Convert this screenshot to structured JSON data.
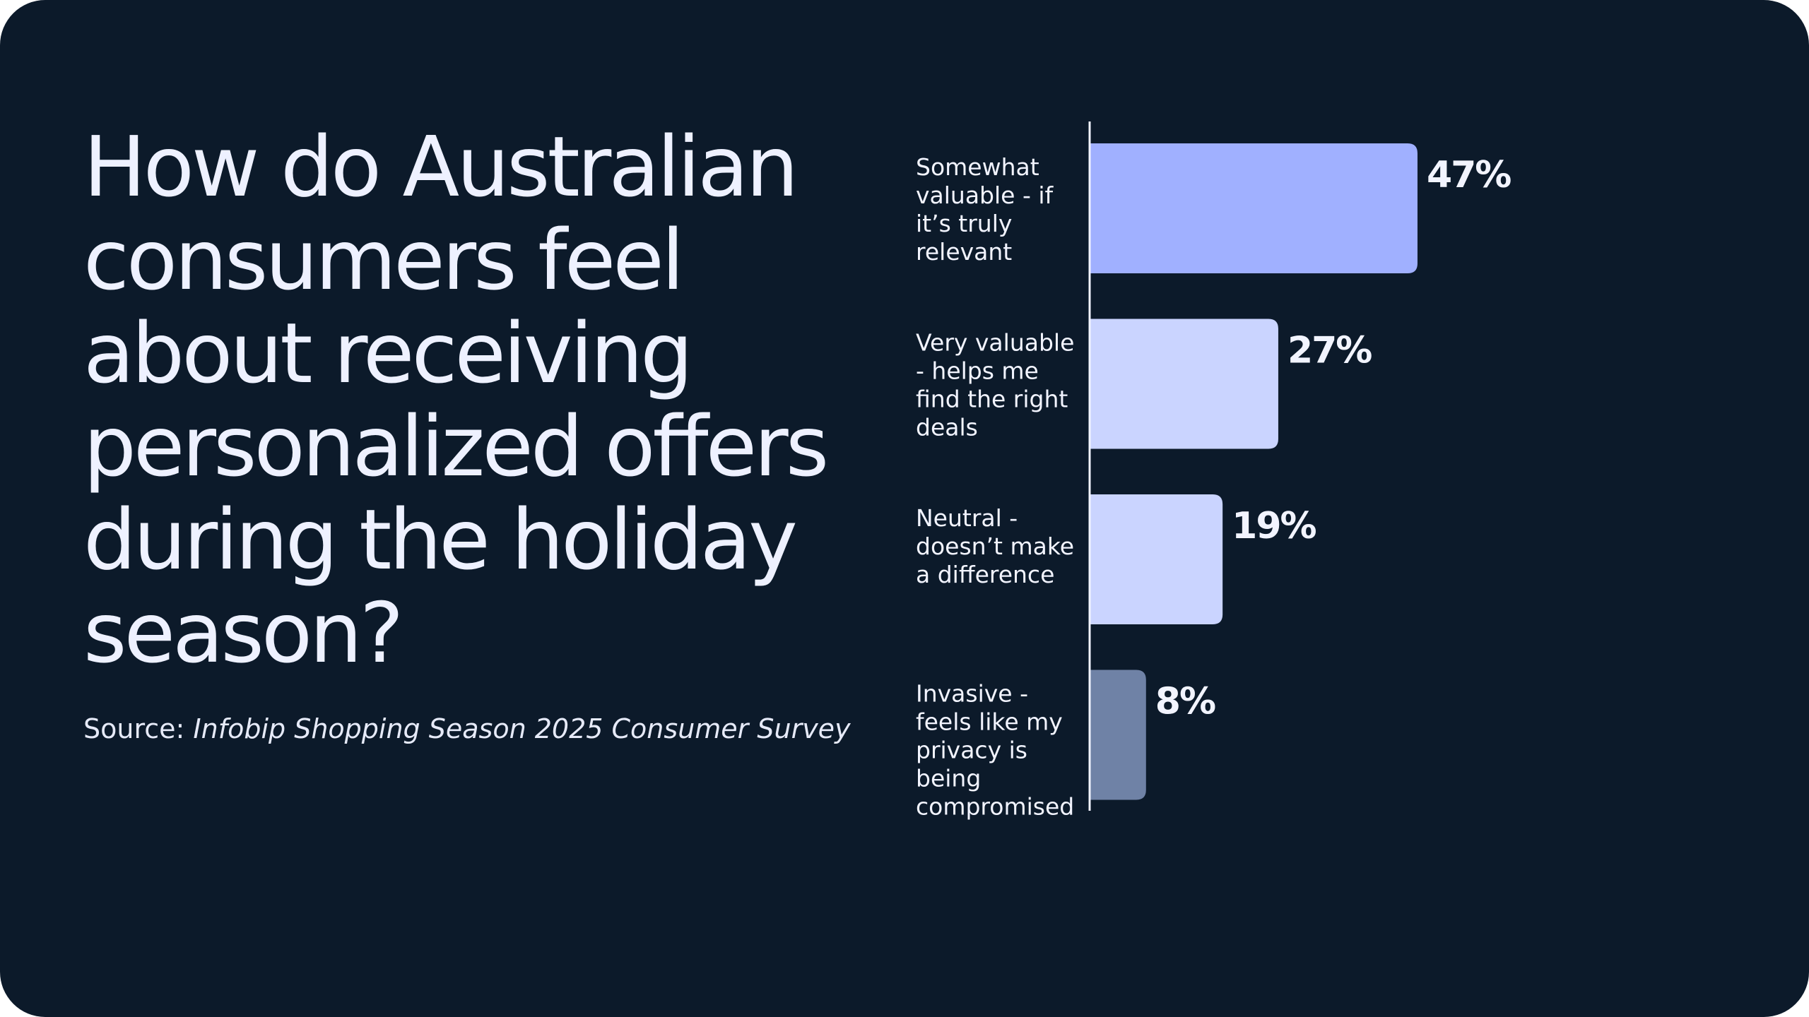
{
  "title": "How do Australian consumers feel about receiving personalized offers during the holiday season?",
  "source": {
    "prefix": "Source: ",
    "name": "Infobip Shopping Season 2025 Consumer Survey"
  },
  "chart_data": {
    "type": "bar",
    "orientation": "horizontal",
    "categories": [
      "Somewhat valuable - if it’s truly relevant",
      "Very valuable - helps me find the right deals",
      "Neutral - doesn’t make a difference",
      "Invasive - feels like my privacy is being compromised"
    ],
    "category_lines": [
      [
        "Somewhat",
        "valuable - if",
        "it’s truly",
        "relevant"
      ],
      [
        "Very valuable",
        "- helps me",
        "find the right",
        "deals"
      ],
      [
        "Neutral -",
        "doesn’t make",
        "a difference"
      ],
      [
        "Invasive -",
        "feels like my",
        "privacy is",
        "being",
        "compromised"
      ]
    ],
    "values": [
      47,
      27,
      19,
      8
    ],
    "value_labels": [
      "47%",
      "27%",
      "19%",
      "8%"
    ],
    "colors": [
      "#a0b0ff",
      "#cad4ff",
      "#cad4ff",
      "#6f82a6"
    ],
    "xlim": [
      0,
      100
    ],
    "grid": false,
    "legend": "none",
    "xlabel": "",
    "ylabel": ""
  }
}
